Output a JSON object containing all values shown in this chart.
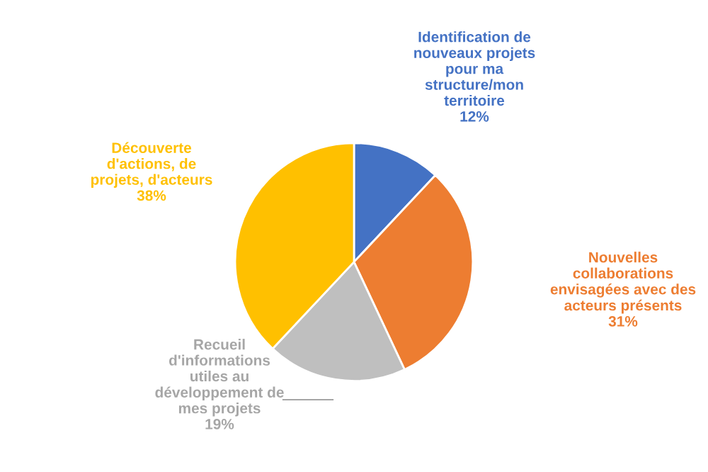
{
  "chart_data": {
    "type": "pie",
    "categories": [
      "Identification de\nnouveaux projets\npour ma\nstructure/mon\nterritoire",
      "Nouvelles\ncollaborations\nenvisagées avec des\nacteurs présents",
      "Recueil\nd'informations\nutiles au\ndéveloppement de\nmes projets",
      "Découverte\nd'actions, de\nprojets, d'acteurs"
    ],
    "values": [
      12,
      31,
      19,
      38
    ],
    "colors": [
      "#4472c4",
      "#ed7d31",
      "#bfbfbf",
      "#ffc000"
    ],
    "value_labels": [
      "12%",
      "31%",
      "19%",
      "38%"
    ],
    "legend": false
  }
}
